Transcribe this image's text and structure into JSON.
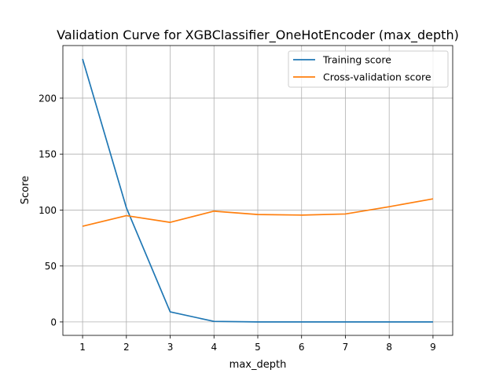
{
  "chart_data": {
    "type": "line",
    "title": "Validation Curve for XGBClassifier_OneHotEncoder (max_depth)",
    "xlabel": "max_depth",
    "ylabel": "Score",
    "x": [
      1,
      2,
      3,
      4,
      5,
      6,
      7,
      8,
      9
    ],
    "xlim": [
      0.55,
      9.45
    ],
    "ylim": [
      -12,
      247
    ],
    "xticks": [
      "1",
      "2",
      "3",
      "4",
      "5",
      "6",
      "7",
      "8",
      "9"
    ],
    "yticks": [
      "0",
      "50",
      "100",
      "150",
      "200"
    ],
    "grid": true,
    "legend": "upper-right",
    "series": [
      {
        "name": "Training score",
        "color": "#1f77b4",
        "values": [
          235,
          102,
          9,
          0.5,
          0,
          0,
          0,
          0,
          0
        ]
      },
      {
        "name": "Cross-validation score",
        "color": "#ff7f0e",
        "values": [
          85.5,
          95,
          89,
          99,
          96,
          95.5,
          96.5,
          103,
          110
        ]
      }
    ]
  }
}
